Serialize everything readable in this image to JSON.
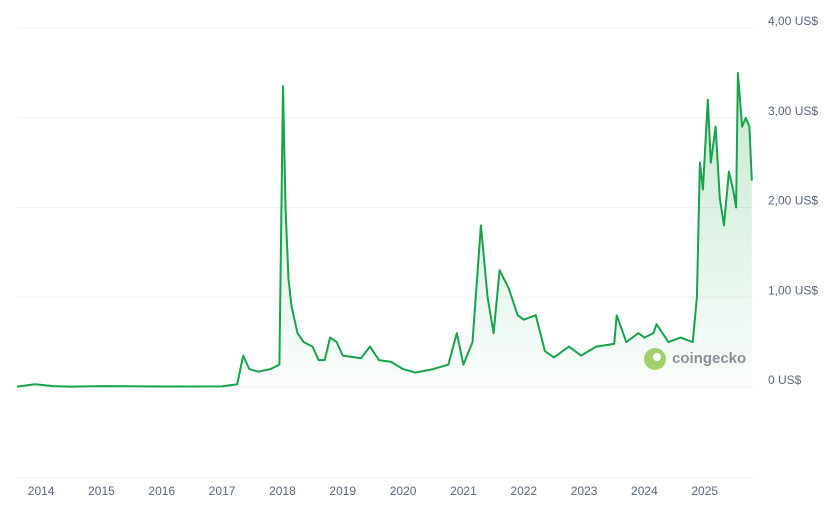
{
  "chart_data": {
    "type": "line",
    "watermark": "coingecko",
    "xlim": [
      2013.6,
      2025.8
    ],
    "xticks": [
      2014,
      2015,
      2016,
      2017,
      2018,
      2019,
      2020,
      2021,
      2022,
      2023,
      2024,
      2025
    ],
    "ylim": [
      0,
      4
    ],
    "yticks": [
      {
        "value": 0,
        "label": "0 US$"
      },
      {
        "value": 1,
        "label": "1,00 US$"
      },
      {
        "value": 2,
        "label": "2,00 US$"
      },
      {
        "value": 3,
        "label": "3,00 US$"
      },
      {
        "value": 4,
        "label": "4,00 US$"
      }
    ],
    "grid": true,
    "series": [
      {
        "color": "#16a34a",
        "x": [
          2013.6,
          2013.9,
          2014.2,
          2014.5,
          2015.0,
          2016.0,
          2017.0,
          2017.25,
          2017.35,
          2017.45,
          2017.6,
          2017.8,
          2017.95,
          2018.01,
          2018.05,
          2018.1,
          2018.15,
          2018.25,
          2018.35,
          2018.5,
          2018.6,
          2018.7,
          2018.79,
          2018.9,
          2019.0,
          2019.3,
          2019.45,
          2019.6,
          2019.8,
          2020.0,
          2020.2,
          2020.5,
          2020.75,
          2020.89,
          2021.0,
          2021.15,
          2021.29,
          2021.4,
          2021.5,
          2021.6,
          2021.75,
          2021.9,
          2022.0,
          2022.2,
          2022.35,
          2022.5,
          2022.75,
          2022.95,
          2023.2,
          2023.5,
          2023.54,
          2023.7,
          2023.9,
          2024.0,
          2024.15,
          2024.2,
          2024.4,
          2024.6,
          2024.8,
          2024.87,
          2024.92,
          2024.97,
          2025.05,
          2025.1,
          2025.18,
          2025.25,
          2025.32,
          2025.4,
          2025.47,
          2025.52,
          2025.55,
          2025.62,
          2025.68,
          2025.74,
          2025.78
        ],
        "values": [
          0.005,
          0.03,
          0.01,
          0.005,
          0.01,
          0.006,
          0.007,
          0.03,
          0.35,
          0.2,
          0.17,
          0.2,
          0.25,
          3.35,
          2.0,
          1.2,
          0.9,
          0.6,
          0.5,
          0.45,
          0.3,
          0.3,
          0.55,
          0.5,
          0.35,
          0.32,
          0.45,
          0.3,
          0.28,
          0.2,
          0.16,
          0.2,
          0.25,
          0.6,
          0.25,
          0.5,
          1.8,
          1.0,
          0.6,
          1.3,
          1.1,
          0.8,
          0.75,
          0.8,
          0.4,
          0.33,
          0.45,
          0.35,
          0.45,
          0.48,
          0.8,
          0.5,
          0.6,
          0.55,
          0.6,
          0.7,
          0.5,
          0.55,
          0.5,
          1.0,
          2.5,
          2.2,
          3.2,
          2.5,
          2.9,
          2.1,
          1.8,
          2.4,
          2.2,
          2.0,
          3.5,
          2.9,
          3.0,
          2.9,
          2.3
        ]
      }
    ]
  }
}
